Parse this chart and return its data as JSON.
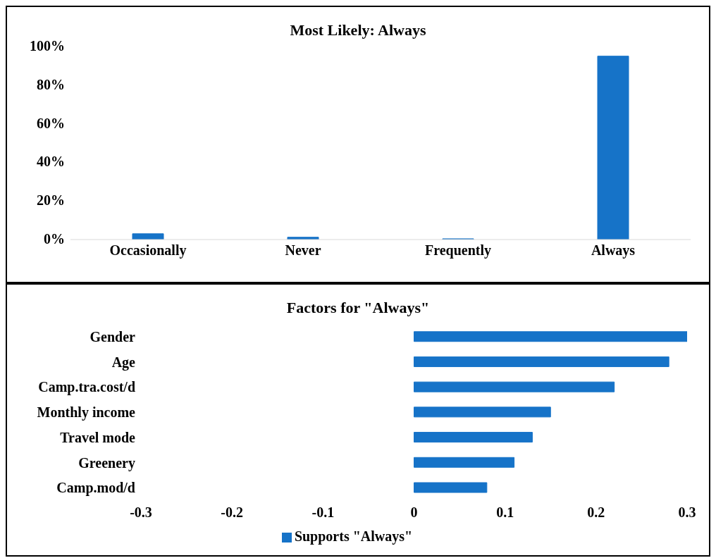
{
  "chart_data": [
    {
      "type": "bar",
      "title": "Most Likely: Always",
      "categories": [
        "Occasionally",
        "Never",
        "Frequently",
        "Always"
      ],
      "values": [
        3,
        1.2,
        0.4,
        95
      ],
      "color": "#1673c8",
      "ylim": [
        0,
        100
      ],
      "yticks": [
        {
          "value": 0,
          "label": "0%"
        },
        {
          "value": 20,
          "label": "20%"
        },
        {
          "value": 40,
          "label": "40%"
        },
        {
          "value": 60,
          "label": "60%"
        },
        {
          "value": 80,
          "label": "80%"
        },
        {
          "value": 100,
          "label": "100%"
        }
      ],
      "grid": false,
      "legend": false
    },
    {
      "type": "bar",
      "orientation": "horizontal",
      "title": "Factors for \"Always\"",
      "categories": [
        "Gender",
        "Age",
        "Camp.tra.cost/d",
        "Monthly income",
        "Travel mode",
        "Greenery",
        "Camp.mod/d"
      ],
      "series": [
        {
          "name": "Supports \"Always\"",
          "color": "#1673c8",
          "values": [
            0.3,
            0.28,
            0.22,
            0.15,
            0.13,
            0.11,
            0.08
          ]
        }
      ],
      "xlim": [
        -0.3,
        0.3
      ],
      "xticks": [
        -0.3,
        -0.2,
        -0.1,
        0,
        0.1,
        0.2,
        0.3
      ],
      "grid": false,
      "legend": "bottom"
    }
  ]
}
